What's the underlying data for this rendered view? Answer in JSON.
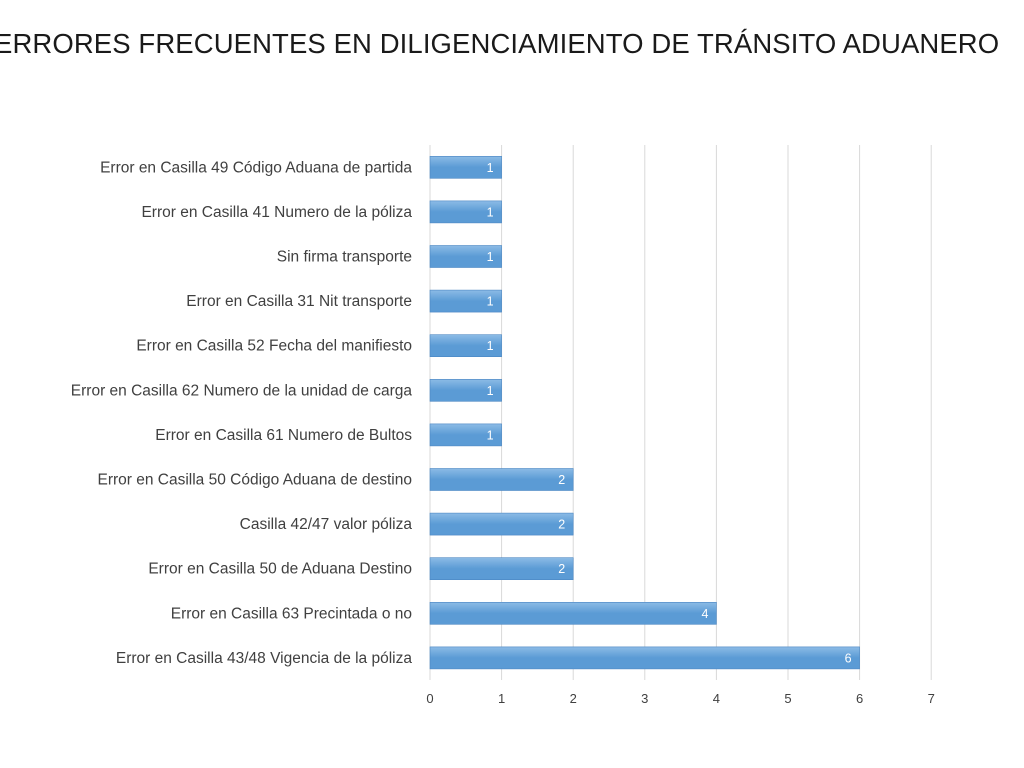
{
  "slide": {
    "title": "ERRORES FRECUENTES EN DILIGENCIAMIENTO DE TRÁNSITO ADUANERO"
  },
  "chart_data": {
    "type": "bar",
    "orientation": "horizontal",
    "categories": [
      "Error en Casilla 49 Código Aduana de partida",
      "Error en Casilla 41 Numero de la póliza",
      "Sin firma transporte",
      "Error en Casilla 31 Nit transporte",
      "Error en Casilla 52 Fecha del manifiesto",
      "Error en Casilla 62 Numero de la unidad de carga",
      "Error en Casilla 61 Numero de Bultos",
      "Error en Casilla 50 Código Aduana de destino",
      "Casilla 42/47 valor póliza",
      "Error en Casilla 50 de Aduana Destino",
      "Error en Casilla 63 Precintada o no",
      "Error en Casilla 43/48 Vigencia  de la póliza"
    ],
    "values": [
      1,
      1,
      1,
      1,
      1,
      1,
      1,
      2,
      2,
      2,
      4,
      6
    ],
    "data_labels": [
      "1",
      "1",
      "1",
      "1",
      "1",
      "1",
      "1",
      "2",
      "2",
      "2",
      "4",
      "6"
    ],
    "xlim": [
      0,
      7
    ],
    "x_ticks": [
      "0",
      "1",
      "2",
      "3",
      "4",
      "5",
      "6",
      "7"
    ],
    "grid": "vertical",
    "legend": "none",
    "bar_color": "#5b9bd5",
    "bar_color_light": "#8cbbe6",
    "bar_border_color": "#4a86c2",
    "grid_color": "#d9d9d9",
    "label_color": "#404040"
  }
}
